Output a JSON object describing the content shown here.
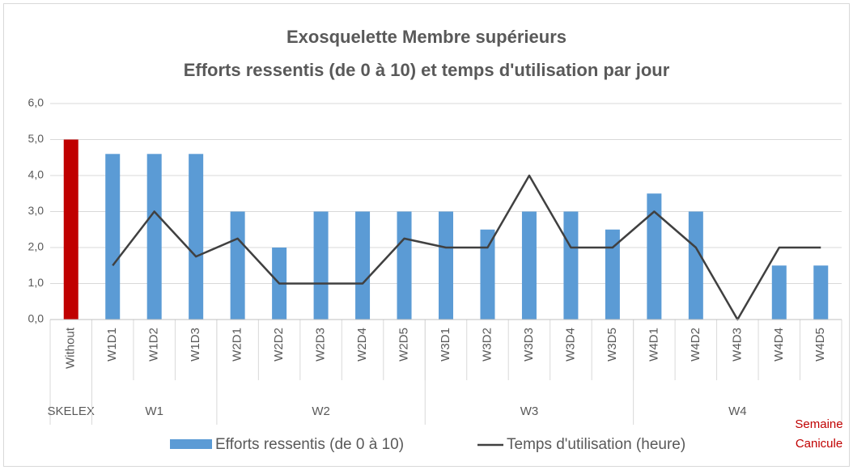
{
  "chart_data": {
    "type": "bar_line",
    "title": [
      "Exosquelette Membre supérieurs",
      "Efforts ressentis (de 0 à 10) et temps d'utilisation  par jour"
    ],
    "categories": [
      "Without",
      "W1D1",
      "W1D2",
      "W1D3",
      "W2D1",
      "W2D2",
      "W2D3",
      "W2D4",
      "W2D5",
      "W3D1",
      "W3D2",
      "W3D3",
      "W3D4",
      "W3D5",
      "W4D1",
      "W4D2",
      "W4D3",
      "W4D4",
      "W4D5"
    ],
    "groups": [
      {
        "label": "SKELEX",
        "size": 1
      },
      {
        "label": "W1",
        "size": 3
      },
      {
        "label": "W2",
        "size": 5
      },
      {
        "label": "W3",
        "size": 5
      },
      {
        "label": "W4",
        "size": 5
      }
    ],
    "series": [
      {
        "name": "Efforts ressentis (de 0 à 10)",
        "type": "bar",
        "color": "#5b9bd5",
        "colors": [
          "#c00000",
          "#5b9bd5",
          "#5b9bd5",
          "#5b9bd5",
          "#5b9bd5",
          "#5b9bd5",
          "#5b9bd5",
          "#5b9bd5",
          "#5b9bd5",
          "#5b9bd5",
          "#5b9bd5",
          "#5b9bd5",
          "#5b9bd5",
          "#5b9bd5",
          "#5b9bd5",
          "#5b9bd5",
          "#5b9bd5",
          "#5b9bd5",
          "#5b9bd5"
        ],
        "values": [
          5,
          4.6,
          4.6,
          4.6,
          3,
          2,
          3,
          3,
          3,
          3,
          2.5,
          3,
          3,
          2.5,
          3.5,
          3,
          null,
          1.5,
          1.5
        ]
      },
      {
        "name": "Temps d'utilisation (heure)",
        "type": "line",
        "color": "#404040",
        "values": [
          null,
          1.5,
          3,
          1.75,
          2.25,
          1,
          1,
          1,
          2.25,
          2,
          2,
          4,
          2,
          2,
          3,
          2,
          0,
          2,
          2
        ]
      }
    ],
    "annotation": {
      "text": [
        "Semaine",
        "Canicule"
      ],
      "color": "#c00000"
    },
    "ylim": [
      0,
      6
    ],
    "yticks": [
      {
        "value": 0,
        "label": "0,0"
      },
      {
        "value": 1,
        "label": "1,0"
      },
      {
        "value": 2,
        "label": "2,0"
      },
      {
        "value": 3,
        "label": "3,0"
      },
      {
        "value": 4,
        "label": "4,0"
      },
      {
        "value": 5,
        "label": "5,0"
      },
      {
        "value": 6,
        "label": "6,0"
      }
    ],
    "grid": true,
    "legend": "bottom"
  }
}
